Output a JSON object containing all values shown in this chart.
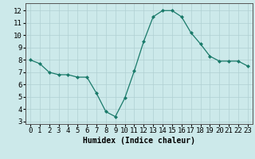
{
  "x": [
    0,
    1,
    2,
    3,
    4,
    5,
    6,
    7,
    8,
    9,
    10,
    11,
    12,
    13,
    14,
    15,
    16,
    17,
    18,
    19,
    20,
    21,
    22,
    23
  ],
  "y": [
    8.0,
    7.7,
    7.0,
    6.8,
    6.8,
    6.6,
    6.6,
    5.3,
    3.8,
    3.4,
    4.9,
    7.1,
    9.5,
    11.5,
    12.0,
    12.0,
    11.5,
    10.2,
    9.3,
    8.3,
    7.9,
    7.9,
    7.9,
    7.5
  ],
  "line_color": "#1a7a6a",
  "marker": "D",
  "marker_size": 2.0,
  "bg_color": "#cce9ea",
  "grid_color": "#b0d0d2",
  "xlabel": "Humidex (Indice chaleur)",
  "xlabel_fontsize": 7,
  "tick_fontsize": 6.5,
  "xlim": [
    -0.5,
    23.5
  ],
  "ylim": [
    2.8,
    12.6
  ],
  "yticks": [
    3,
    4,
    5,
    6,
    7,
    8,
    9,
    10,
    11,
    12
  ],
  "xticks": [
    0,
    1,
    2,
    3,
    4,
    5,
    6,
    7,
    8,
    9,
    10,
    11,
    12,
    13,
    14,
    15,
    16,
    17,
    18,
    19,
    20,
    21,
    22,
    23
  ]
}
